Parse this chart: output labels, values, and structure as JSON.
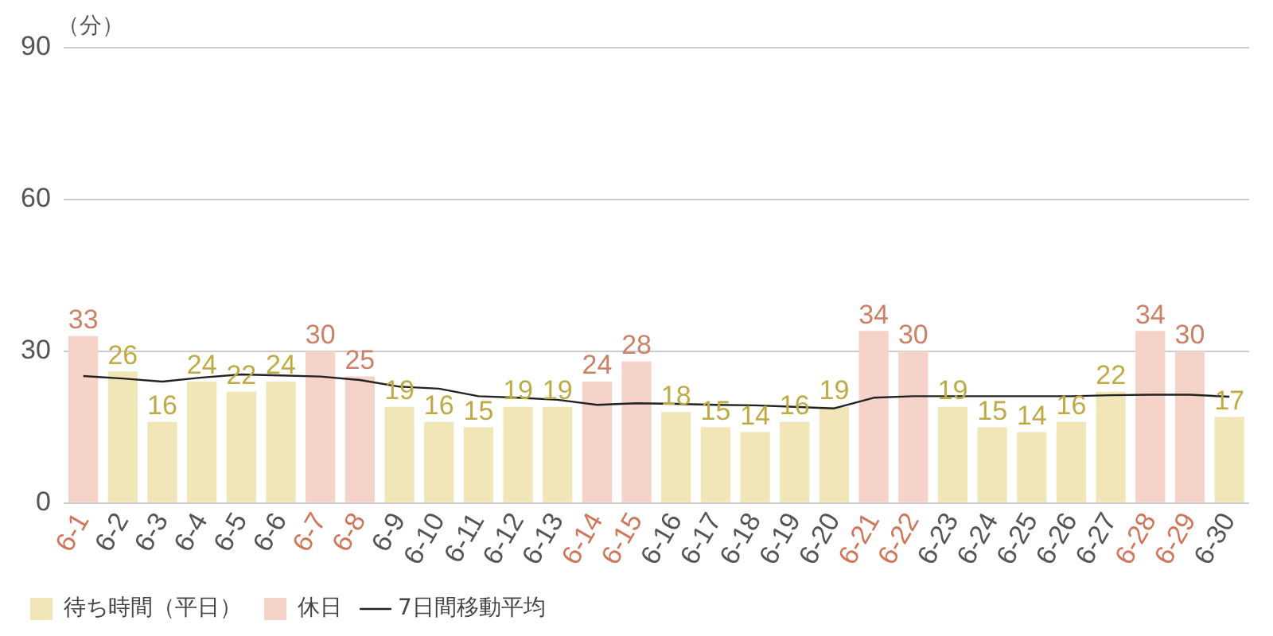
{
  "chart_data": {
    "type": "bar",
    "ylabel": "（分）",
    "categories": [
      "6-1",
      "6-2",
      "6-3",
      "6-4",
      "6-5",
      "6-6",
      "6-7",
      "6-8",
      "6-9",
      "6-10",
      "6-11",
      "6-12",
      "6-13",
      "6-14",
      "6-15",
      "6-16",
      "6-17",
      "6-18",
      "6-19",
      "6-20",
      "6-21",
      "6-22",
      "6-23",
      "6-24",
      "6-25",
      "6-26",
      "6-27",
      "6-28",
      "6-29",
      "6-30"
    ],
    "series": [
      {
        "name": "待ち時間（平日）",
        "color": "#f0e6b8",
        "values": [
          null,
          26,
          16,
          24,
          22,
          24,
          null,
          null,
          19,
          16,
          15,
          19,
          19,
          null,
          null,
          18,
          15,
          14,
          16,
          19,
          null,
          null,
          19,
          15,
          14,
          16,
          22,
          null,
          null,
          17
        ],
        "value_labels": [
          null,
          "26",
          "16",
          "24",
          "22",
          "24",
          null,
          null,
          "19",
          "16",
          "15",
          "19",
          "19",
          null,
          null,
          "18",
          "15",
          "14",
          "16",
          "19",
          null,
          null,
          "19",
          "15",
          "14",
          "16",
          "22",
          null,
          null,
          "17"
        ]
      },
      {
        "name": "休日",
        "color": "#f5d3c8",
        "values": [
          33,
          null,
          null,
          null,
          null,
          null,
          30,
          25,
          null,
          null,
          null,
          null,
          null,
          24,
          28,
          null,
          null,
          null,
          null,
          null,
          34,
          30,
          null,
          null,
          null,
          null,
          null,
          34,
          30,
          null
        ],
        "value_labels": [
          "33",
          null,
          null,
          null,
          null,
          null,
          "30",
          "25",
          null,
          null,
          null,
          null,
          null,
          "24",
          "28",
          null,
          null,
          null,
          null,
          null,
          "34",
          "30",
          null,
          null,
          null,
          null,
          null,
          "34",
          "30",
          null
        ]
      },
      {
        "name": "7日間移動平均",
        "type": "line",
        "color": "#222222",
        "values": [
          25.1,
          24.6,
          24.0,
          24.8,
          25.4,
          25.2,
          25.0,
          24.3,
          23.0,
          22.6,
          21.1,
          20.8,
          20.4,
          19.4,
          19.7,
          19.6,
          19.4,
          19.3,
          19.0,
          18.7,
          20.8,
          21.1,
          21.1,
          21.1,
          21.1,
          21.1,
          21.3,
          21.4,
          21.4,
          21.0
        ]
      }
    ],
    "ylim": [
      0,
      90
    ],
    "yticks": [
      0,
      30,
      60,
      90
    ],
    "grid": "y",
    "legend": "bottom left",
    "marker": "none",
    "line_style": "solid"
  }
}
